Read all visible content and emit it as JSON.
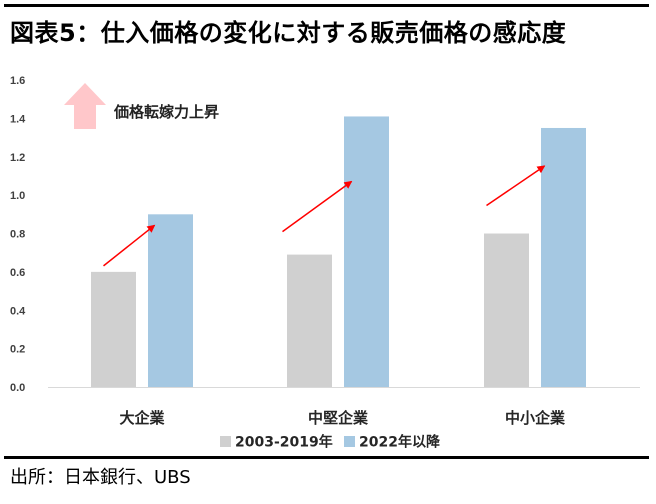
{
  "header": {
    "title": "図表5：仕入価格の変化に対する販売価格の感応度"
  },
  "footer": {
    "source": "出所：日本銀行、UBS"
  },
  "chart_data": {
    "type": "bar",
    "categories": [
      "大企業",
      "中堅企業",
      "中小企業"
    ],
    "series": [
      {
        "name": "2003-2019年",
        "values": [
          0.6,
          0.69,
          0.8
        ],
        "color": "#d0d0d0"
      },
      {
        "name": "2022年以降",
        "values": [
          0.9,
          1.41,
          1.35
        ],
        "color": "#a5c8e2"
      }
    ],
    "y_ticks": [
      "0.0",
      "0.2",
      "0.4",
      "0.6",
      "0.8",
      "1.0",
      "1.2",
      "1.4",
      "1.6"
    ],
    "ylim": [
      0,
      1.6
    ],
    "grid": false,
    "legend_position": "bottom",
    "annotation": {
      "text": "価格転嫁力上昇",
      "icon": "up-arrow-icon",
      "icon_color": "#ffc7ca",
      "arrow_color": "#ff0000"
    }
  }
}
